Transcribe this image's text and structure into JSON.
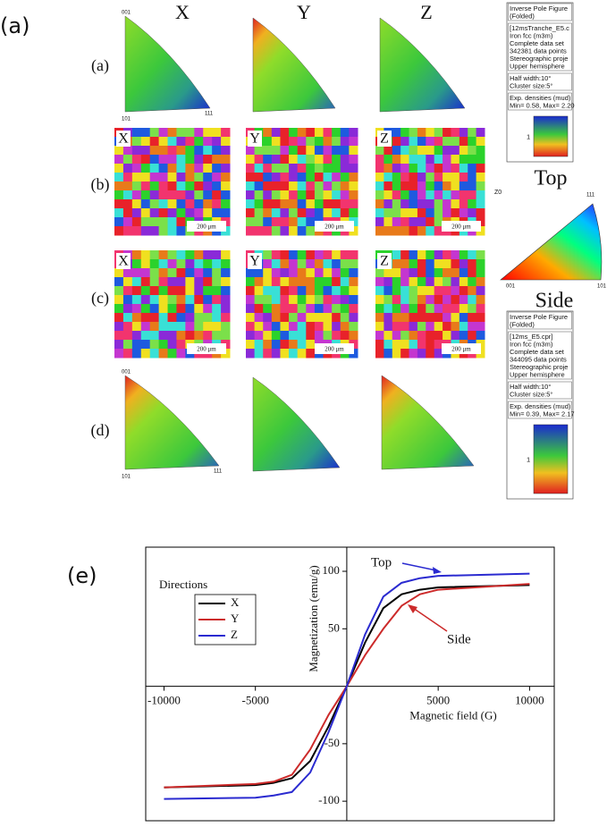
{
  "figure_label_a": "(a)",
  "columns": [
    "X",
    "Y",
    "Z"
  ],
  "rows": [
    "(a)",
    "(b)",
    "(c)",
    "(d)"
  ],
  "pole_figure_corners": [
    "001",
    "101",
    "111"
  ],
  "map_labels": [
    "X",
    "Y",
    "Z"
  ],
  "scale_bar": "200 μm",
  "legend_top": {
    "title": [
      "Inverse Pole Figure",
      "(Folded)"
    ],
    "info": [
      "[12msTranche_E5.c",
      "Iron fcc (m3m)",
      "Complete data set",
      "342381 data points",
      "Stereographic proje",
      "Upper hemisphere"
    ],
    "params": [
      "Half width:10°",
      "Cluster size:5°"
    ],
    "densities": [
      "Exp. densities (mud)",
      "Min= 0.58, Max= 2.20"
    ],
    "key": "1"
  },
  "top_label": "Top",
  "z0_label": "Z0",
  "key_corners": [
    "001",
    "101",
    "111"
  ],
  "side_label": "Side",
  "legend_side": {
    "title": [
      "Inverse Pole Figure",
      "(Folded)"
    ],
    "info": [
      "[12ms_E5.cpr]",
      "Iron fcc (m3m)",
      "Complete data set",
      "344095 data points",
      "Stereographic proje",
      "Upper hemisphere"
    ],
    "params": [
      "Half width:10°",
      "Cluster size:5°"
    ],
    "densities": [
      "Exp. densities (mud)",
      "Min= 0.39, Max= 2.17"
    ],
    "key": "1"
  },
  "figure_label_e": "(e)",
  "chart_data": {
    "type": "line",
    "x_label": "Magnetic field (G)",
    "y_label": "Magnetization (emu/g)",
    "legend_title": "Directions",
    "x": [
      -10000,
      -5000,
      -4000,
      -3000,
      -2000,
      -1000,
      0,
      1000,
      2000,
      3000,
      4000,
      5000,
      10000
    ],
    "series": [
      {
        "name": "X",
        "color": "#000000",
        "values": [
          -88,
          -86,
          -84,
          -80,
          -65,
          -35,
          0,
          38,
          68,
          80,
          84,
          86,
          88
        ]
      },
      {
        "name": "Y",
        "color": "#cc2a2a",
        "values": [
          -88,
          -85,
          -83,
          -77,
          -55,
          -25,
          0,
          27,
          50,
          70,
          80,
          84,
          89
        ]
      },
      {
        "name": "Z",
        "color": "#2a2ad0",
        "values": [
          -98,
          -97,
          -95,
          -92,
          -75,
          -40,
          0,
          45,
          78,
          90,
          94,
          96,
          98
        ]
      }
    ],
    "annotations": [
      "Top",
      "Side"
    ],
    "xlim": [
      -11000,
      11350
    ],
    "ylim": [
      -117,
      121
    ],
    "xticks": [
      -10000,
      -5000,
      5000,
      10000
    ],
    "yticks": [
      -100,
      -50,
      50,
      100
    ],
    "grid": false
  }
}
